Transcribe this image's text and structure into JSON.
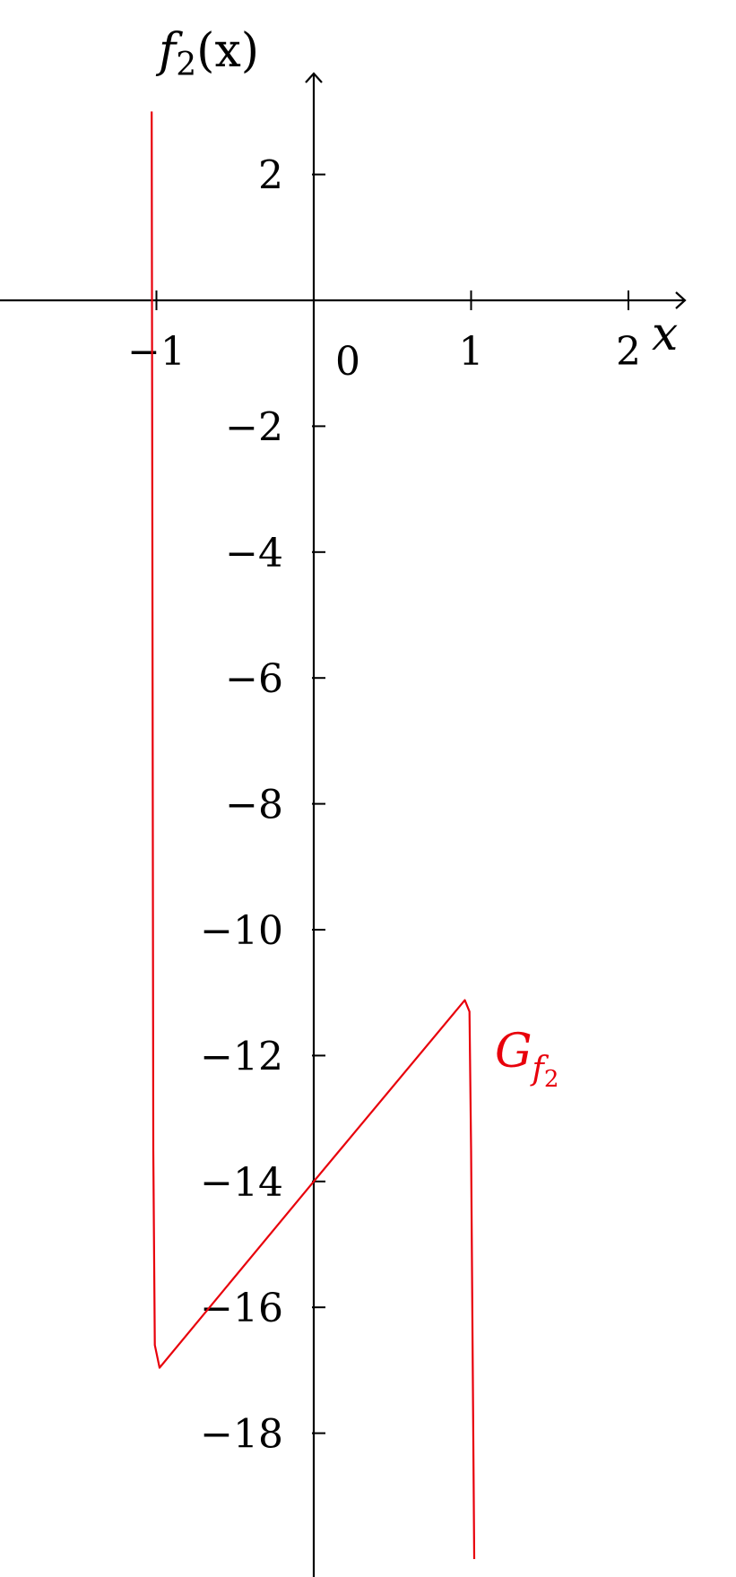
{
  "chart_data": {
    "type": "line",
    "title": "",
    "xlabel": {
      "base": "x"
    },
    "ylabel": {
      "func": "f",
      "sub": "2",
      "arg": "(x)"
    },
    "xlim": [
      -2,
      2.35
    ],
    "ylim": [
      -20,
      3.5
    ],
    "x_ticks": [
      -1,
      1,
      2
    ],
    "x_tick_labels": [
      "−1",
      "1",
      "2"
    ],
    "origin_label": "0",
    "y_ticks": [
      2,
      -2,
      -4,
      -6,
      -8,
      -10,
      -12,
      -14,
      -16,
      -18
    ],
    "y_tick_labels": [
      "2",
      "−2",
      "−4",
      "−6",
      "−8",
      "−10",
      "−12",
      "−14",
      "−16",
      "−18"
    ],
    "grid": false,
    "series": [
      {
        "name": {
          "base": "G",
          "sub": "f",
          "subsub": "2"
        },
        "color": "#e8000b",
        "points": [
          [
            -1.03,
            3.0
          ],
          [
            -1.025,
            -5.0
          ],
          [
            -1.02,
            -13.5
          ],
          [
            -1.01,
            -16.6
          ],
          [
            -0.98,
            -16.96
          ],
          [
            0.0,
            -14.0
          ],
          [
            0.96,
            -11.12
          ],
          [
            0.99,
            -11.3
          ],
          [
            1.0,
            -13.5
          ],
          [
            1.02,
            -20.0
          ]
        ]
      }
    ]
  }
}
